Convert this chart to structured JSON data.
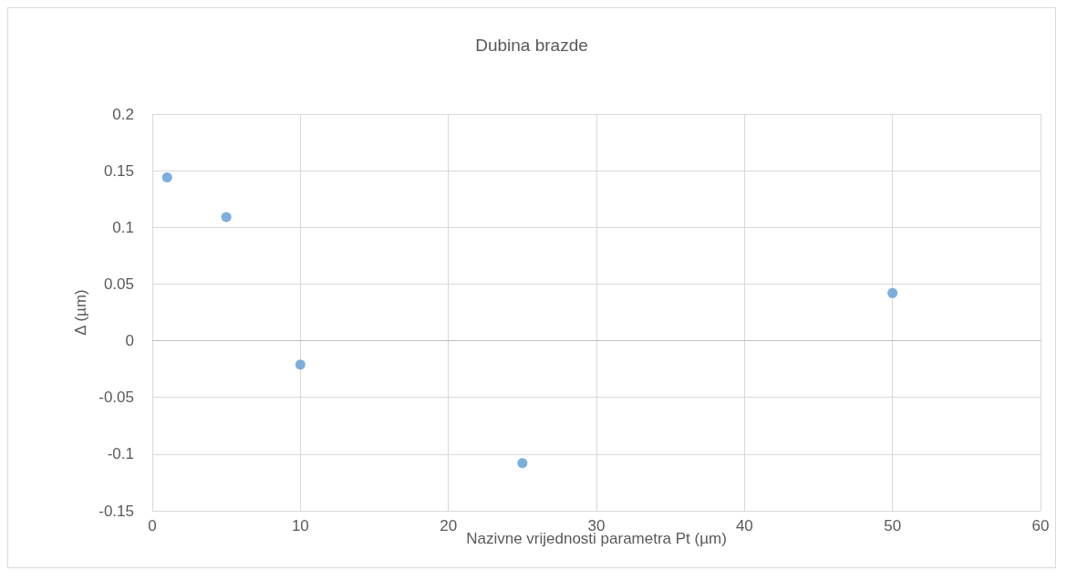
{
  "chart_data": {
    "type": "scatter",
    "title": "Dubina brazde",
    "xlabel": "Nazivne vrijednosti parametra Pt (µm)",
    "ylabel": "Δ (µm)",
    "x": [
      1,
      5,
      10,
      25,
      50
    ],
    "series": [
      {
        "color": "#5b9bd5",
        "values": [
          0.144,
          0.109,
          -0.021,
          -0.108,
          0.042
        ]
      }
    ],
    "xlim": [
      0,
      60
    ],
    "xticks": [
      0,
      10,
      20,
      30,
      40,
      50,
      60
    ],
    "ylim": [
      -0.15,
      0.2
    ],
    "yticks": [
      -0.15,
      -0.1,
      -0.05,
      0,
      0.05,
      0.1,
      0.15,
      0.2
    ],
    "grid": true,
    "marker": "circle"
  }
}
